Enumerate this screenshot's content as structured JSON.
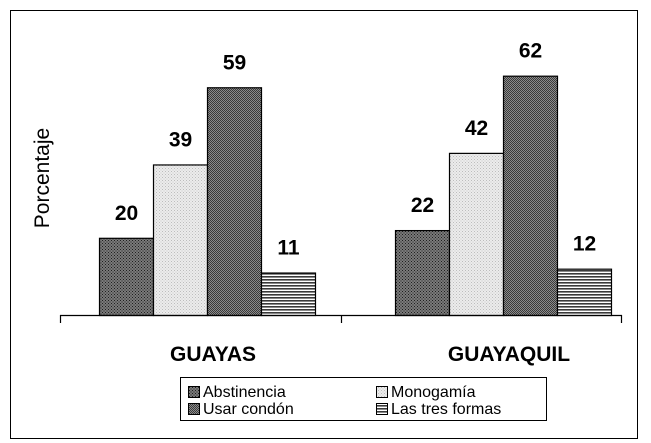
{
  "chart_data": {
    "type": "bar",
    "title": "",
    "xlabel": "",
    "ylabel": "Porcentaje",
    "ylim": [
      0,
      70
    ],
    "grid": false,
    "legend_position": "bottom",
    "categories": [
      "GUAYAS",
      "GUAYAQUIL"
    ],
    "series": [
      {
        "name": "Abstinencia",
        "values": [
          20,
          22
        ],
        "color": "#555555",
        "pattern": "dark-dots"
      },
      {
        "name": "Monogamía",
        "values": [
          39,
          42
        ],
        "color": "#e4e4e4",
        "pattern": "light-dots"
      },
      {
        "name": "Usar condón",
        "values": [
          59,
          62
        ],
        "color": "#666666",
        "pattern": "dense-dots"
      },
      {
        "name": "Las tres formas",
        "values": [
          11,
          12
        ],
        "color": "#888888",
        "pattern": "horizontal-lines"
      }
    ],
    "legend_order": [
      "Abstinencia",
      "Monogamía",
      "Usar condón",
      "Las tres formas"
    ]
  }
}
